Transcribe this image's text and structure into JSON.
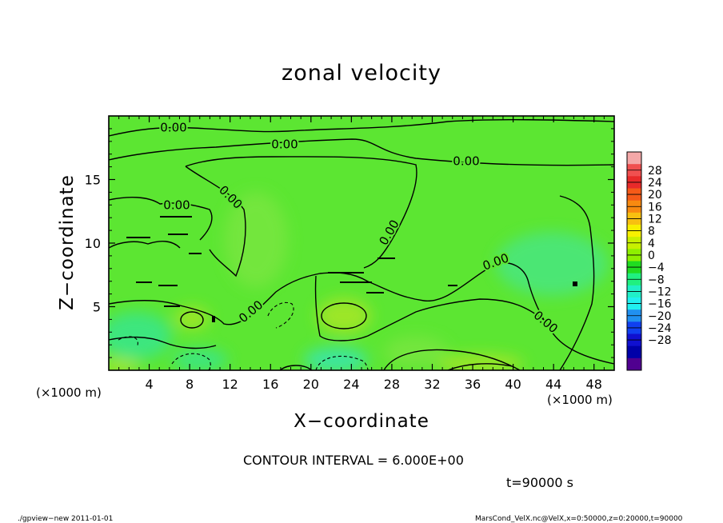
{
  "chart_data": {
    "type": "heatmap",
    "title": "zonal velocity",
    "xlabel": "X−coordinate",
    "ylabel": "Z−coordinate",
    "x_unit_label": "(×1000 m)",
    "xlim": [
      0,
      50
    ],
    "ylim": [
      0,
      20
    ],
    "x_ticks": [
      "4",
      "8",
      "12",
      "16",
      "20",
      "24",
      "28",
      "32",
      "36",
      "40",
      "44",
      "48"
    ],
    "x_tick_values": [
      4,
      8,
      12,
      16,
      20,
      24,
      28,
      32,
      36,
      40,
      44,
      48
    ],
    "y_ticks": [
      "5",
      "10",
      "15"
    ],
    "y_tick_values": [
      5,
      10,
      15
    ],
    "contour_labels": [
      "0.00",
      "0.00",
      "0.00",
      "0.00",
      "0.00",
      "0.00",
      "0.00",
      "0.00",
      "0.00"
    ],
    "colorbar": {
      "labels": [
        "28",
        "24",
        "20",
        "16",
        "12",
        "8",
        "4",
        "0",
        "−4",
        "−8",
        "−12",
        "−16",
        "−20",
        "−24",
        "−28"
      ],
      "levels": [
        28,
        24,
        20,
        16,
        12,
        8,
        4,
        0,
        -4,
        -8,
        -12,
        -16,
        -20,
        -24,
        -28
      ],
      "colors": [
        "#f4a8a8",
        "#f05050",
        "#e82a2a",
        "#f55a18",
        "#f88a10",
        "#f8c010",
        "#f8f000",
        "#c8f000",
        "#8ef000",
        "#20dc20",
        "#20f080",
        "#20f0c8",
        "#20f0f0",
        "#2090f0",
        "#1040f0",
        "#1010d0",
        "#0000a8",
        "#500090"
      ]
    },
    "field_colors": {
      "dominant": "#5ce632",
      "positive_blob": "#a8e628",
      "negative_patch": "#38e68c"
    },
    "contour_interval_text": "CONTOUR INTERVAL = 6.000E+00",
    "time_text": "t=90000 s"
  },
  "footer": {
    "left": "./gpview−new   2011-01-01",
    "right": "MarsCond_VelX.nc@VelX,x=0:50000,z=0:20000,t=90000"
  }
}
